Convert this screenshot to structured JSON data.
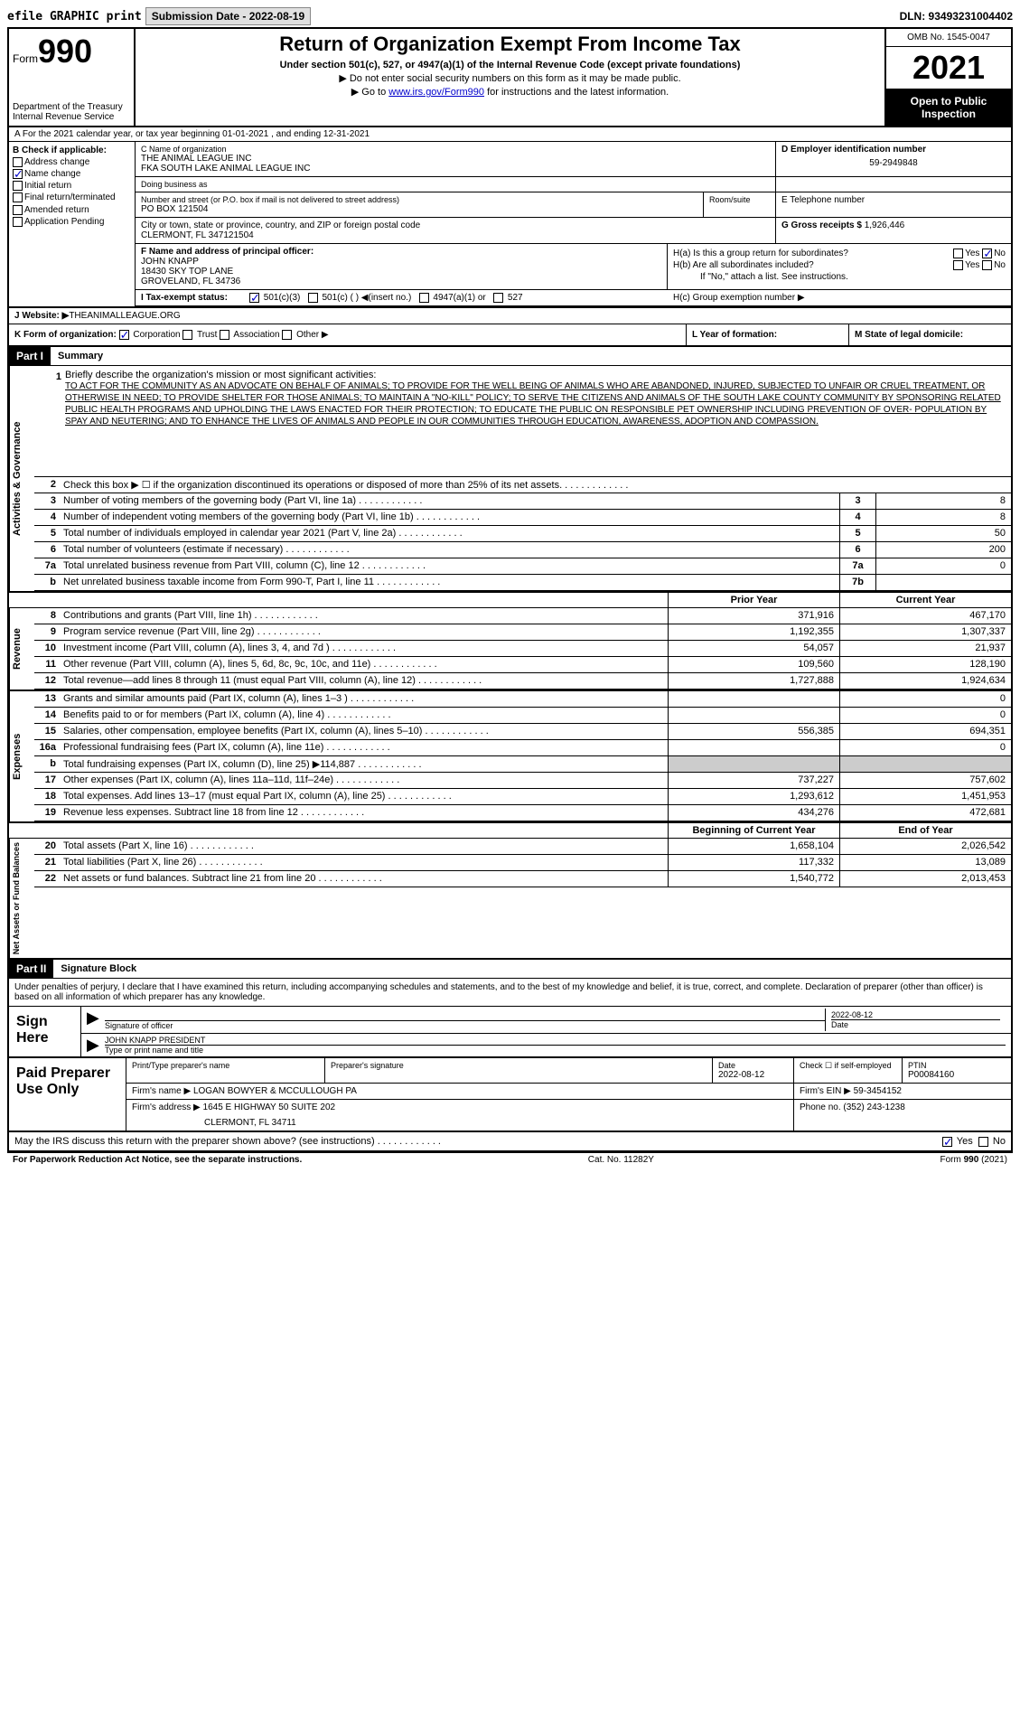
{
  "topbar": {
    "efile": "efile GRAPHIC print",
    "submission_label": "Submission Date - 2022-08-19",
    "dln": "DLN: 93493231004402"
  },
  "header": {
    "form_label": "Form",
    "form_no": "990",
    "dept": "Department of the Treasury",
    "irs": "Internal Revenue Service",
    "title": "Return of Organization Exempt From Income Tax",
    "subtitle": "Under section 501(c), 527, or 4947(a)(1) of the Internal Revenue Code (except private foundations)",
    "note1": "▶ Do not enter social security numbers on this form as it may be made public.",
    "note2_pre": "▶ Go to ",
    "note2_link": "www.irs.gov/Form990",
    "note2_post": " for instructions and the latest information.",
    "omb": "OMB No. 1545-0047",
    "year": "2021",
    "inspection": "Open to Public Inspection"
  },
  "row_a": "A For the 2021 calendar year, or tax year beginning 01-01-2021  , and ending 12-31-2021",
  "section_b": {
    "label": "B Check if applicable:",
    "items": [
      {
        "label": "Address change",
        "checked": false
      },
      {
        "label": "Name change",
        "checked": true
      },
      {
        "label": "Initial return",
        "checked": false
      },
      {
        "label": "Final return/terminated",
        "checked": false
      },
      {
        "label": "Amended return",
        "checked": false
      },
      {
        "label": "Application Pending",
        "checked": false
      }
    ]
  },
  "section_c": {
    "label": "C Name of organization",
    "name": "THE ANIMAL LEAGUE INC",
    "fka": "FKA SOUTH LAKE ANIMAL LEAGUE INC",
    "dba_label": "Doing business as",
    "dba": "",
    "addr_label": "Number and street (or P.O. box if mail is not delivered to street address)",
    "addr": "PO BOX 121504",
    "room_label": "Room/suite",
    "city_label": "City or town, state or province, country, and ZIP or foreign postal code",
    "city": "CLERMONT, FL  347121504"
  },
  "section_d": {
    "label": "D Employer identification number",
    "value": "59-2949848"
  },
  "section_e": {
    "label": "E Telephone number",
    "value": ""
  },
  "section_g": {
    "label": "G Gross receipts $",
    "value": "1,926,446"
  },
  "section_f": {
    "label": "F  Name and address of principal officer:",
    "name": "JOHN KNAPP",
    "addr1": "18430 SKY TOP LANE",
    "addr2": "GROVELAND, FL  34736"
  },
  "section_h": {
    "ha": "H(a)  Is this a group return for subordinates?",
    "ha_yes": false,
    "ha_no": true,
    "hb": "H(b)  Are all subordinates included?",
    "hb_note": "If \"No,\" attach a list. See instructions.",
    "hc": "H(c)  Group exemption number ▶"
  },
  "section_i": {
    "label": "I  Tax-exempt status:",
    "c3": true
  },
  "section_j": {
    "label": "J Website: ▶",
    "value": " THEANIMALLEAGUE.ORG"
  },
  "section_k": {
    "label": "K Form of organization:",
    "corp": true
  },
  "section_l": {
    "label": "L Year of formation:",
    "value": ""
  },
  "section_m": {
    "label": "M State of legal domicile:",
    "value": ""
  },
  "parts": {
    "p1": {
      "header": "Part I",
      "title": "Summary"
    },
    "p2": {
      "header": "Part II",
      "title": "Signature Block"
    }
  },
  "mission": {
    "num": "1",
    "label": "Briefly describe the organization's mission or most significant activities:",
    "text": "TO ACT FOR THE COMMUNITY AS AN ADVOCATE ON BEHALF OF ANIMALS; TO PROVIDE FOR THE WELL BEING OF ANIMALS WHO ARE ABANDONED, INJURED, SUBJECTED TO UNFAIR OR CRUEL TREATMENT, OR OTHERWISE IN NEED; TO PROVIDE SHELTER FOR THOSE ANIMALS; TO MAINTAIN A \"NO-KILL\" POLICY; TO SERVE THE CITIZENS AND ANIMALS OF THE SOUTH LAKE COUNTY COMMUNITY BY SPONSORING RELATED PUBLIC HEALTH PROGRAMS AND UPHOLDING THE LAWS ENACTED FOR THEIR PROTECTION; TO EDUCATE THE PUBLIC ON RESPONSIBLE PET OWNERSHIP INCLUDING PREVENTION OF OVER- POPULATION BY SPAY AND NEUTERING; AND TO ENHANCE THE LIVES OF ANIMALS AND PEOPLE IN OUR COMMUNITIES THROUGH EDUCATION, AWARENESS, ADOPTION AND COMPASSION."
  },
  "gov_rows": [
    {
      "num": "2",
      "desc": "Check this box ▶ ☐ if the organization discontinued its operations or disposed of more than 25% of its net assets.",
      "box": "",
      "val": ""
    },
    {
      "num": "3",
      "desc": "Number of voting members of the governing body (Part VI, line 1a)",
      "box": "3",
      "val": "8"
    },
    {
      "num": "4",
      "desc": "Number of independent voting members of the governing body (Part VI, line 1b)",
      "box": "4",
      "val": "8"
    },
    {
      "num": "5",
      "desc": "Total number of individuals employed in calendar year 2021 (Part V, line 2a)",
      "box": "5",
      "val": "50"
    },
    {
      "num": "6",
      "desc": "Total number of volunteers (estimate if necessary)",
      "box": "6",
      "val": "200"
    },
    {
      "num": "7a",
      "desc": "Total unrelated business revenue from Part VIII, column (C), line 12",
      "box": "7a",
      "val": "0"
    },
    {
      "num": "b",
      "desc": "Net unrelated business taxable income from Form 990-T, Part I, line 11",
      "box": "7b",
      "val": ""
    }
  ],
  "col_headers": {
    "prior": "Prior Year",
    "current": "Current Year",
    "boy": "Beginning of Current Year",
    "eoy": "End of Year"
  },
  "revenue_rows": [
    {
      "num": "8",
      "desc": "Contributions and grants (Part VIII, line 1h)",
      "prior": "371,916",
      "curr": "467,170"
    },
    {
      "num": "9",
      "desc": "Program service revenue (Part VIII, line 2g)",
      "prior": "1,192,355",
      "curr": "1,307,337"
    },
    {
      "num": "10",
      "desc": "Investment income (Part VIII, column (A), lines 3, 4, and 7d )",
      "prior": "54,057",
      "curr": "21,937"
    },
    {
      "num": "11",
      "desc": "Other revenue (Part VIII, column (A), lines 5, 6d, 8c, 9c, 10c, and 11e)",
      "prior": "109,560",
      "curr": "128,190"
    },
    {
      "num": "12",
      "desc": "Total revenue—add lines 8 through 11 (must equal Part VIII, column (A), line 12)",
      "prior": "1,727,888",
      "curr": "1,924,634"
    }
  ],
  "expense_rows": [
    {
      "num": "13",
      "desc": "Grants and similar amounts paid (Part IX, column (A), lines 1–3 )",
      "prior": "",
      "curr": "0"
    },
    {
      "num": "14",
      "desc": "Benefits paid to or for members (Part IX, column (A), line 4)",
      "prior": "",
      "curr": "0"
    },
    {
      "num": "15",
      "desc": "Salaries, other compensation, employee benefits (Part IX, column (A), lines 5–10)",
      "prior": "556,385",
      "curr": "694,351"
    },
    {
      "num": "16a",
      "desc": "Professional fundraising fees (Part IX, column (A), line 11e)",
      "prior": "",
      "curr": "0"
    },
    {
      "num": "b",
      "desc": "Total fundraising expenses (Part IX, column (D), line 25) ▶114,887",
      "prior": "GREY",
      "curr": "GREY"
    },
    {
      "num": "17",
      "desc": "Other expenses (Part IX, column (A), lines 11a–11d, 11f–24e)",
      "prior": "737,227",
      "curr": "757,602"
    },
    {
      "num": "18",
      "desc": "Total expenses. Add lines 13–17 (must equal Part IX, column (A), line 25)",
      "prior": "1,293,612",
      "curr": "1,451,953"
    },
    {
      "num": "19",
      "desc": "Revenue less expenses. Subtract line 18 from line 12",
      "prior": "434,276",
      "curr": "472,681"
    }
  ],
  "netassets_rows": [
    {
      "num": "20",
      "desc": "Total assets (Part X, line 16)",
      "prior": "1,658,104",
      "curr": "2,026,542"
    },
    {
      "num": "21",
      "desc": "Total liabilities (Part X, line 26)",
      "prior": "117,332",
      "curr": "13,089"
    },
    {
      "num": "22",
      "desc": "Net assets or fund balances. Subtract line 21 from line 20",
      "prior": "1,540,772",
      "curr": "2,013,453"
    }
  ],
  "side_labels": {
    "gov": "Activities & Governance",
    "rev": "Revenue",
    "exp": "Expenses",
    "net": "Net Assets or Fund Balances"
  },
  "signature": {
    "declaration": "Under penalties of perjury, I declare that I have examined this return, including accompanying schedules and statements, and to the best of my knowledge and belief, it is true, correct, and complete. Declaration of preparer (other than officer) is based on all information of which preparer has any knowledge.",
    "sign_here": "Sign Here",
    "sig_label": "Signature of officer",
    "date_label": "Date",
    "date": "2022-08-12",
    "officer": "JOHN KNAPP  PRESIDENT",
    "officer_label": "Type or print name and title"
  },
  "preparer": {
    "label": "Paid Preparer Use Only",
    "name_label": "Print/Type preparer's name",
    "sig_label": "Preparer's signature",
    "date_label": "Date",
    "date": "2022-08-12",
    "check_label": "Check ☐ if self-employed",
    "ptin_label": "PTIN",
    "ptin": "P00084160",
    "firm_name_label": "Firm's name    ▶",
    "firm_name": "LOGAN BOWYER & MCCULLOUGH PA",
    "firm_ein_label": "Firm's EIN ▶",
    "firm_ein": "59-3454152",
    "firm_addr_label": "Firm's address ▶",
    "firm_addr1": "1645 E HIGHWAY 50 SUITE 202",
    "firm_addr2": "CLERMONT, FL  34711",
    "phone_label": "Phone no.",
    "phone": "(352) 243-1238"
  },
  "discuss": {
    "text": "May the IRS discuss this return with the preparer shown above? (see instructions)",
    "yes": true,
    "no": false
  },
  "footer": {
    "left": "For Paperwork Reduction Act Notice, see the separate instructions.",
    "center": "Cat. No. 11282Y",
    "right": "Form 990 (2021)"
  },
  "colors": {
    "link": "#0000cc",
    "black": "#000000",
    "grey": "#cccccc",
    "btn_bg": "#e0e0e0"
  }
}
